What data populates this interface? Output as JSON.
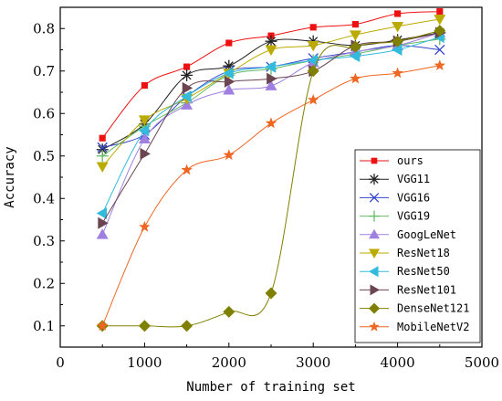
{
  "chart_data": {
    "type": "line",
    "title": "",
    "xlabel": "Number of training set",
    "ylabel": "Accuracy",
    "xlim": [
      0,
      5000
    ],
    "ylim": [
      0.05,
      0.85
    ],
    "x_ticks": [
      "0",
      "1000",
      "2000",
      "3000",
      "4000",
      "5000"
    ],
    "y_ticks": [
      "0.1",
      "0.2",
      "0.3",
      "0.4",
      "0.5",
      "0.6",
      "0.7",
      "0.8"
    ],
    "x": [
      500,
      1000,
      1500,
      2000,
      2500,
      3000,
      3500,
      4000,
      4500
    ],
    "grid": false,
    "legend_position": "right",
    "series": [
      {
        "name": "ours",
        "color": "#ee1111",
        "marker": "square",
        "values": [
          0.542,
          0.666,
          0.71,
          0.766,
          0.783,
          0.803,
          0.81,
          0.835,
          0.84
        ]
      },
      {
        "name": "VGG11",
        "color": "#222222",
        "marker": "asterisk",
        "values": [
          0.515,
          0.575,
          0.69,
          0.712,
          0.77,
          0.77,
          0.76,
          0.773,
          0.79
        ]
      },
      {
        "name": "VGG16",
        "color": "#3344cc",
        "marker": "x",
        "values": [
          0.52,
          0.55,
          0.64,
          0.7,
          0.71,
          0.73,
          0.745,
          0.76,
          0.75
        ]
      },
      {
        "name": "VGG19",
        "color": "#66bb66",
        "marker": "plus",
        "values": [
          0.5,
          0.57,
          0.625,
          0.69,
          0.705,
          0.725,
          0.74,
          0.76,
          0.775
        ]
      },
      {
        "name": "GoogLeNet",
        "color": "#9f80e0",
        "marker": "triangle-up",
        "values": [
          0.315,
          0.54,
          0.62,
          0.655,
          0.665,
          0.72,
          0.745,
          0.76,
          0.79
        ]
      },
      {
        "name": "ResNet18",
        "color": "#bbaa00",
        "marker": "triangle-down",
        "values": [
          0.475,
          0.585,
          0.635,
          0.695,
          0.75,
          0.76,
          0.785,
          0.805,
          0.822
        ]
      },
      {
        "name": "ResNet50",
        "color": "#33bbdd",
        "marker": "triangle-left",
        "values": [
          0.365,
          0.56,
          0.64,
          0.695,
          0.71,
          0.725,
          0.735,
          0.75,
          0.78
        ]
      },
      {
        "name": "ResNet101",
        "color": "#6b4550",
        "marker": "triangle-right",
        "values": [
          0.342,
          0.505,
          0.66,
          0.675,
          0.682,
          0.7,
          0.76,
          0.77,
          0.79
        ]
      },
      {
        "name": "DenseNet121",
        "color": "#808000",
        "marker": "diamond",
        "values": [
          0.1,
          0.1,
          0.1,
          0.133,
          0.177,
          0.7,
          0.757,
          0.77,
          0.795
        ]
      },
      {
        "name": "MobileNetV2",
        "color": "#ee6622",
        "marker": "star",
        "values": [
          0.1,
          0.333,
          0.467,
          0.502,
          0.577,
          0.632,
          0.682,
          0.695,
          0.713
        ]
      }
    ]
  }
}
